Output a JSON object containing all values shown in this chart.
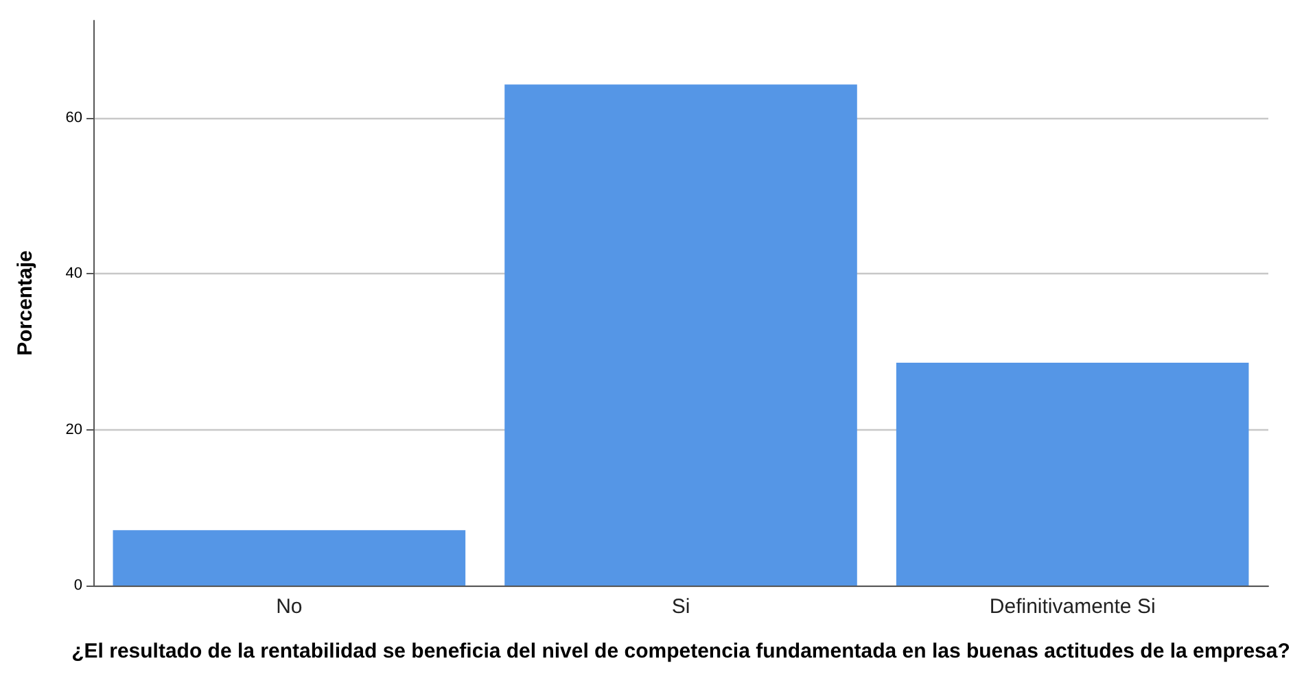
{
  "chart_data": {
    "type": "bar",
    "categories": [
      "No",
      "Si",
      "Definitivamente Si"
    ],
    "values": [
      7.1,
      64.3,
      28.6
    ],
    "color": "#5596e6",
    "xlabel": "¿El resultado de la rentabilidad se beneficia del nivel de competencia fundamentada en las buenas actitudes de la empresa?",
    "ylabel": "Porcentaje",
    "ylim": [
      0,
      72.5
    ],
    "yticks": [
      0,
      20,
      40,
      60
    ],
    "grid": "y"
  }
}
